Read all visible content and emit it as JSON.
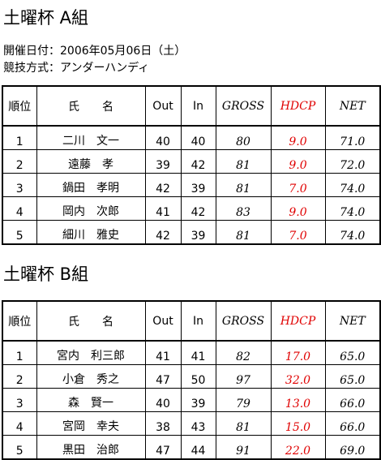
{
  "header": {
    "title": "土曜杯 A組",
    "date": "開催日付：2006年05月06日（土）",
    "format": "競技方式：アンダーハンディ"
  },
  "columns": [
    "順位",
    "氏　　名",
    "Out",
    "In",
    "GROSS",
    "HDCP",
    "NET"
  ],
  "tables": [
    {
      "title": "土曜杯 A組",
      "rows": [
        [
          "1",
          "二川　文一",
          "40",
          "40",
          "80",
          "9.0",
          "71.0"
        ],
        [
          "2",
          "遠藤　孝",
          "39",
          "42",
          "81",
          "9.0",
          "72.0"
        ],
        [
          "3",
          "鍋田　孝明",
          "42",
          "39",
          "81",
          "7.0",
          "74.0"
        ],
        [
          "4",
          "岡内　次郎",
          "41",
          "42",
          "83",
          "9.0",
          "74.0"
        ],
        [
          "5",
          "細川　雅史",
          "42",
          "39",
          "81",
          "7.0",
          "74.0"
        ]
      ]
    },
    {
      "title": "土曜杯 B組",
      "rows": [
        [
          "1",
          "宮内　利三郎",
          "41",
          "41",
          "82",
          "17.0",
          "65.0"
        ],
        [
          "2",
          "小倉　秀之",
          "47",
          "50",
          "97",
          "32.0",
          "65.0"
        ],
        [
          "3",
          "森　賢一",
          "40",
          "39",
          "79",
          "13.0",
          "66.0"
        ],
        [
          "4",
          "宮岡　幸夫",
          "38",
          "43",
          "81",
          "15.0",
          "66.0"
        ],
        [
          "5",
          "黒田　治郎",
          "47",
          "44",
          "91",
          "22.0",
          "69.0"
        ]
      ]
    }
  ]
}
